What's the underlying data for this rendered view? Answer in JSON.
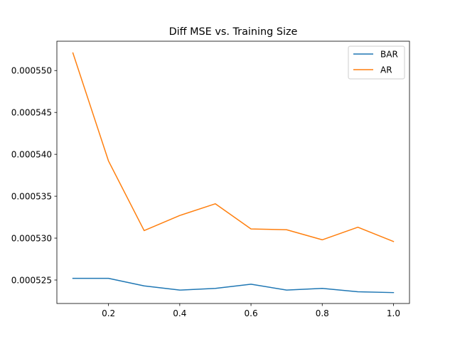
{
  "chart_data": {
    "type": "line",
    "title": "Diff MSE vs. Training Size",
    "xlabel": "",
    "ylabel": "",
    "x": [
      0.1,
      0.2,
      0.3,
      0.4,
      0.5,
      0.6,
      0.7,
      0.8,
      0.9,
      1.0
    ],
    "series": [
      {
        "name": "BAR",
        "color": "#1f77b4",
        "values": [
          0.0005252,
          0.0005252,
          0.0005243,
          0.0005238,
          0.000524,
          0.0005245,
          0.0005238,
          0.000524,
          0.0005236,
          0.0005235
        ]
      },
      {
        "name": "AR",
        "color": "#ff7f0e",
        "values": [
          0.0005521,
          0.0005392,
          0.0005309,
          0.0005327,
          0.0005341,
          0.0005311,
          0.000531,
          0.0005298,
          0.0005313,
          0.0005296
        ]
      }
    ],
    "xlim": [
      0.055,
      1.045
    ],
    "ylim": [
      0.0005222,
      0.0005535
    ],
    "xticks": [
      0.2,
      0.4,
      0.6,
      0.8,
      1.0
    ],
    "xtick_labels": [
      "0.2",
      "0.4",
      "0.6",
      "0.8",
      "1.0"
    ],
    "yticks": [
      0.000525,
      0.00053,
      0.000535,
      0.00054,
      0.000545,
      0.00055
    ],
    "ytick_labels": [
      "0.000525",
      "0.000530",
      "0.000535",
      "0.000540",
      "0.000545",
      "0.000550"
    ],
    "grid": false,
    "legend_position": "top-right"
  }
}
